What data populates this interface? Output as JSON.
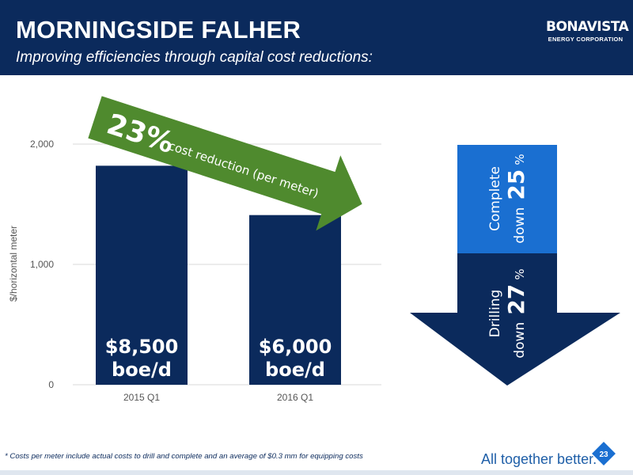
{
  "header": {
    "title": "MORNINGSIDE FALHER",
    "subtitle": "Improving efficiencies through capital cost reductions:"
  },
  "logo": {
    "name": "BONAVISTA",
    "sub": "ENERGY CORPORATION"
  },
  "colors": {
    "navy": "#0b2a5c",
    "bright_blue": "#1a6fd1",
    "green": "#4f8a2e",
    "axis_text": "#555555"
  },
  "chart_data": {
    "type": "bar",
    "categories": [
      "2015 Q1",
      "2016 Q1"
    ],
    "values": [
      1820,
      1410
    ],
    "ylabel": "$/horizontal meter",
    "ylim": [
      0,
      2000
    ],
    "yticks": [
      "0",
      "1,000",
      "2,000"
    ],
    "grid": true,
    "bar_labels": [
      {
        "line1": "$8,500",
        "line2": "boe/d"
      },
      {
        "line1": "$6,000",
        "line2": "boe/d"
      }
    ]
  },
  "callout": {
    "percent": "23%",
    "text": "cost reduction (per meter)"
  },
  "breakdown": {
    "complete": {
      "word": "Complete",
      "down": "down",
      "value": "25",
      "unit": "%"
    },
    "drilling": {
      "word": "Drilling",
      "down": "down",
      "value": "27",
      "unit": "%"
    }
  },
  "footer": {
    "footnote": "*  Costs per meter include actual costs to drill and complete and an average of $0.3 mm for equipping costs",
    "tagline": "All together better.",
    "tagline_mark": "®",
    "page_number": "23"
  }
}
